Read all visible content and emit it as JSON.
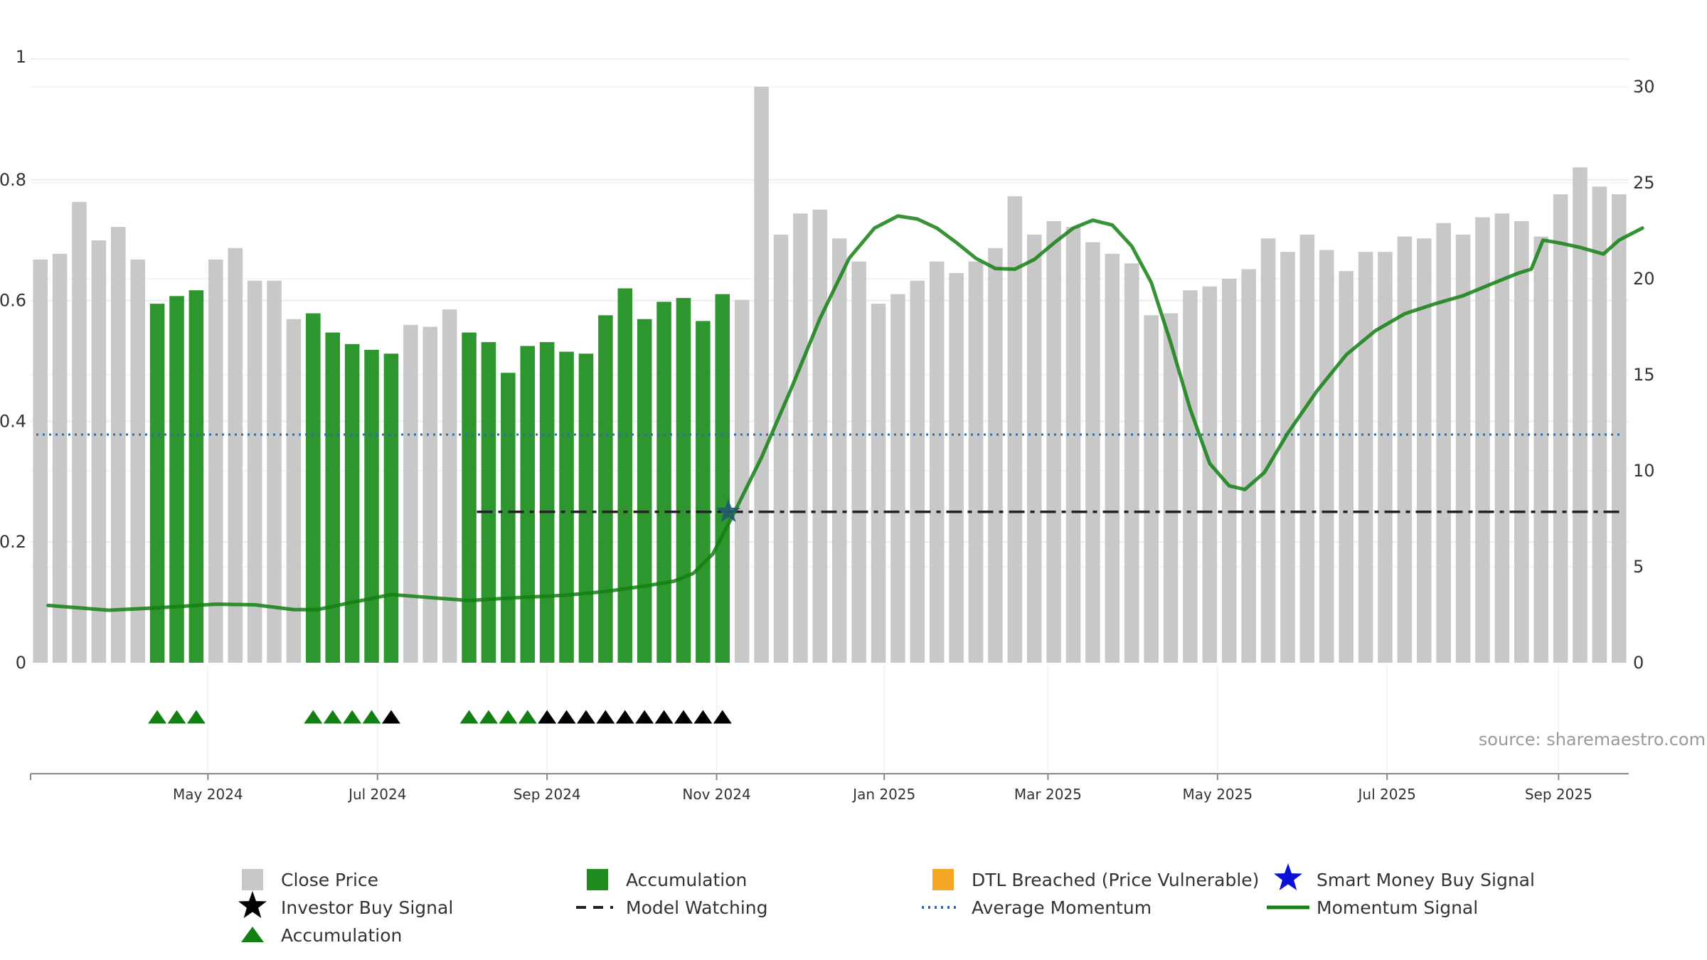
{
  "chart_data": {
    "type": "bar",
    "source_note": "source: sharemaestro.com",
    "x_ticks": [
      "May 2024",
      "Jul 2024",
      "Sep 2024",
      "Nov 2024",
      "Jan 2025",
      "Mar 2025",
      "May 2025",
      "Jul 2025",
      "Sep 2025"
    ],
    "x_tick_weeks": [
      8.6,
      17.3,
      26.0,
      34.7,
      43.3,
      51.7,
      60.4,
      69.1,
      77.9
    ],
    "left_axis": {
      "ticks": [
        "0",
        "0.2",
        "0.4",
        "0.6",
        "0.8",
        "1"
      ],
      "range": [
        0,
        1
      ]
    },
    "right_axis": {
      "ticks": [
        "0",
        "5",
        "10",
        "15",
        "20",
        "25",
        "30"
      ],
      "range": [
        0,
        30
      ]
    },
    "close_price": [
      21,
      21.3,
      24,
      22,
      22.7,
      21,
      18.7,
      19.1,
      19.4,
      21,
      21.6,
      19.9,
      19.9,
      17.9,
      18.2,
      17.2,
      16.6,
      16.3,
      16.1,
      17.6,
      17.5,
      18.4,
      17.2,
      16.7,
      15.1,
      16.5,
      16.7,
      16.2,
      16.1,
      18.1,
      19.5,
      17.9,
      18.8,
      19,
      17.8,
      19.2,
      18.9,
      30,
      22.3,
      23.4,
      23.6,
      22.1,
      20.9,
      18.7,
      19.2,
      19.9,
      20.9,
      20.3,
      20.9,
      21.6,
      24.3,
      22.3,
      23,
      22.7,
      21.9,
      21.3,
      20.8,
      18.1,
      18.2,
      19.4,
      19.6,
      20,
      20.5,
      22.1,
      21.4,
      22.3,
      21.5,
      20.4,
      21.4,
      21.4,
      22.2,
      22.1,
      22.9,
      22.3,
      23.2,
      23.4,
      23,
      22.2,
      24.4,
      25.8,
      24.8,
      24.4
    ],
    "accumulation_weeks": [
      6,
      7,
      8,
      14,
      15,
      16,
      17,
      18,
      22,
      23,
      24,
      25,
      26,
      27,
      28,
      29,
      30,
      31,
      32,
      33,
      34,
      35
    ],
    "accumulation_marker_weeks": [
      6,
      7,
      8,
      14,
      15,
      16,
      17,
      22,
      23,
      24,
      25
    ],
    "investor_buy_signal_weeks": [
      18,
      26,
      27,
      28,
      29,
      30,
      31,
      32,
      33,
      34,
      35
    ],
    "smart_money_buy_signal_week": 35.3,
    "smart_money_buy_signal_value": 0.25,
    "model_watching": {
      "start_week": 22.4,
      "value": 0.25
    },
    "average_momentum": 0.378,
    "momentum_signal": [
      [
        0.4,
        0.095
      ],
      [
        3.5,
        0.087
      ],
      [
        6,
        0.091
      ],
      [
        9,
        0.097
      ],
      [
        11,
        0.096
      ],
      [
        13,
        0.088
      ],
      [
        14.2,
        0.088
      ],
      [
        16,
        0.1
      ],
      [
        18,
        0.113
      ],
      [
        20,
        0.108
      ],
      [
        22,
        0.103
      ],
      [
        24,
        0.107
      ],
      [
        27,
        0.112
      ],
      [
        29,
        0.118
      ],
      [
        31,
        0.127
      ],
      [
        32.5,
        0.135
      ],
      [
        33.5,
        0.148
      ],
      [
        34.5,
        0.18
      ],
      [
        35.5,
        0.242
      ],
      [
        37,
        0.34
      ],
      [
        38.5,
        0.452
      ],
      [
        40,
        0.57
      ],
      [
        41.5,
        0.67
      ],
      [
        42.8,
        0.72
      ],
      [
        44,
        0.74
      ],
      [
        45,
        0.735
      ],
      [
        46,
        0.72
      ],
      [
        47,
        0.696
      ],
      [
        48,
        0.67
      ],
      [
        49,
        0.653
      ],
      [
        50,
        0.652
      ],
      [
        51,
        0.668
      ],
      [
        52,
        0.695
      ],
      [
        53,
        0.72
      ],
      [
        54,
        0.733
      ],
      [
        55,
        0.725
      ],
      [
        56,
        0.69
      ],
      [
        57,
        0.63
      ],
      [
        58,
        0.53
      ],
      [
        59,
        0.42
      ],
      [
        60,
        0.33
      ],
      [
        61,
        0.293
      ],
      [
        61.8,
        0.287
      ],
      [
        62.8,
        0.315
      ],
      [
        64,
        0.38
      ],
      [
        65.5,
        0.45
      ],
      [
        67,
        0.51
      ],
      [
        68.5,
        0.55
      ],
      [
        70,
        0.578
      ],
      [
        71.5,
        0.594
      ],
      [
        73,
        0.608
      ],
      [
        74.5,
        0.628
      ],
      [
        75.8,
        0.645
      ],
      [
        76.5,
        0.652
      ],
      [
        77.1,
        0.7
      ],
      [
        78,
        0.695
      ],
      [
        79,
        0.688
      ],
      [
        80.2,
        0.677
      ],
      [
        81,
        0.7
      ],
      [
        82.2,
        0.72
      ]
    ],
    "legend": [
      "Close Price",
      "Accumulation",
      "DTL Breached (Price Vulnerable)",
      "Smart Money Buy Signal",
      "Investor Buy Signal",
      "Model Watching",
      "Average Momentum",
      "Momentum Signal",
      "Accumulation"
    ],
    "colors": {
      "close_price": "#c8c8c8",
      "accumulation": "#2e962e",
      "accumulation_legend": "#1f8c1f",
      "dtl_breached": "#f5a623",
      "smart_money": "#0b10d6",
      "investor_buy": "#000000",
      "model_watching": "#222222",
      "average_momentum": "#2b6cb0",
      "momentum_signal": "#138013",
      "triangle_accumulation": "#138013",
      "gridline": "#ececf2",
      "axis": "#888888"
    }
  }
}
